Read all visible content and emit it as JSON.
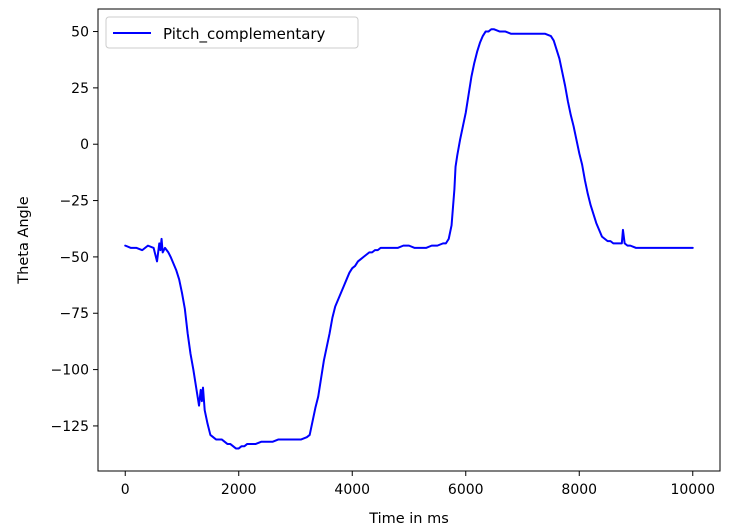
{
  "chart_data": {
    "type": "line",
    "title": "",
    "xlabel": "Time in ms",
    "ylabel": "Theta Angle",
    "xlim": [
      -480,
      10480
    ],
    "ylim": [
      -145,
      60
    ],
    "x_ticks": [
      0,
      2000,
      4000,
      6000,
      8000,
      10000
    ],
    "x_tick_labels": [
      "0",
      "2000",
      "4000",
      "6000",
      "8000",
      "10000"
    ],
    "y_ticks": [
      50,
      25,
      0,
      -25,
      -50,
      -75,
      -100,
      -125
    ],
    "y_tick_labels": [
      "50",
      "25",
      "0",
      "−25",
      "−50",
      "−75",
      "−100",
      "−125"
    ],
    "grid": false,
    "legend_position": "upper-left",
    "series": [
      {
        "name": "Pitch_complementary",
        "color": "#0000ff",
        "x": [
          0,
          100,
          200,
          300,
          400,
          500,
          560,
          600,
          620,
          640,
          660,
          700,
          760,
          800,
          850,
          900,
          950,
          1000,
          1050,
          1100,
          1150,
          1200,
          1250,
          1300,
          1330,
          1350,
          1370,
          1400,
          1450,
          1500,
          1550,
          1600,
          1650,
          1700,
          1750,
          1800,
          1850,
          1900,
          1950,
          2000,
          2050,
          2100,
          2150,
          2200,
          2300,
          2400,
          2500,
          2600,
          2700,
          2800,
          2900,
          3000,
          3100,
          3200,
          3250,
          3300,
          3350,
          3400,
          3450,
          3500,
          3550,
          3600,
          3650,
          3700,
          3750,
          3800,
          3850,
          3900,
          3950,
          4000,
          4050,
          4100,
          4150,
          4200,
          4250,
          4300,
          4350,
          4400,
          4450,
          4500,
          4600,
          4700,
          4800,
          4900,
          5000,
          5100,
          5200,
          5300,
          5400,
          5500,
          5600,
          5650,
          5700,
          5750,
          5800,
          5820,
          5850,
          5900,
          5950,
          6000,
          6050,
          6100,
          6150,
          6200,
          6250,
          6300,
          6350,
          6400,
          6450,
          6500,
          6600,
          6700,
          6800,
          6900,
          7000,
          7100,
          7200,
          7300,
          7400,
          7500,
          7550,
          7600,
          7650,
          7700,
          7750,
          7800,
          7850,
          7900,
          7950,
          8000,
          8050,
          8100,
          8150,
          8200,
          8250,
          8300,
          8350,
          8400,
          8450,
          8500,
          8550,
          8600,
          8650,
          8700,
          8750,
          8770,
          8800,
          8850,
          8900,
          9000,
          9100,
          9200,
          9300,
          9400,
          9500,
          9600,
          9700,
          9800,
          9900,
          10000
        ],
        "y": [
          -45,
          -46,
          -46,
          -47,
          -45,
          -46,
          -52,
          -44,
          -47,
          -42,
          -48,
          -46,
          -48,
          -50,
          -53,
          -56,
          -60,
          -66,
          -73,
          -84,
          -93,
          -100,
          -108,
          -116,
          -109,
          -114,
          -108,
          -118,
          -124,
          -129,
          -130,
          -131,
          -131,
          -131,
          -132,
          -133,
          -133,
          -134,
          -135,
          -135,
          -134,
          -134,
          -133,
          -133,
          -133,
          -132,
          -132,
          -132,
          -131,
          -131,
          -131,
          -131,
          -131,
          -130,
          -129,
          -123,
          -117,
          -112,
          -104,
          -96,
          -90,
          -84,
          -77,
          -72,
          -69,
          -66,
          -63,
          -60,
          -57,
          -55,
          -54,
          -52,
          -51,
          -50,
          -49,
          -48,
          -48,
          -47,
          -47,
          -46,
          -46,
          -46,
          -46,
          -45,
          -45,
          -46,
          -46,
          -46,
          -45,
          -45,
          -44,
          -44,
          -42,
          -36,
          -20,
          -10,
          -5,
          2,
          8,
          14,
          22,
          30,
          36,
          41,
          45,
          48,
          50,
          50,
          51,
          51,
          50,
          50,
          49,
          49,
          49,
          49,
          49,
          49,
          49,
          48,
          46,
          42,
          38,
          32,
          26,
          19,
          13,
          8,
          2,
          -4,
          -9,
          -16,
          -22,
          -27,
          -31,
          -35,
          -38,
          -41,
          -42,
          -43,
          -43,
          -44,
          -44,
          -44,
          -44,
          -38,
          -44,
          -45,
          -45,
          -46,
          -46,
          -46,
          -46,
          -46,
          -46,
          -46,
          -46,
          -46,
          -46,
          -46
        ]
      }
    ]
  }
}
